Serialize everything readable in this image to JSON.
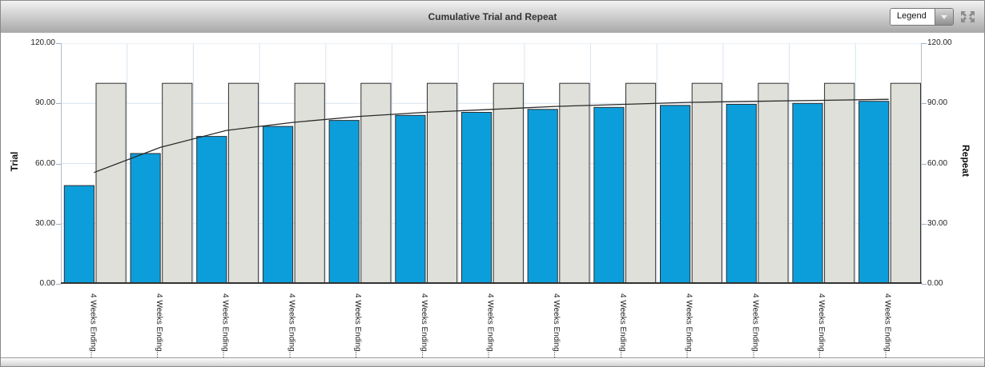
{
  "toolbar": {
    "legend_selector": {
      "value": "Legend"
    }
  },
  "colors": {
    "accent_blue": "#0c9edb",
    "bar_gray": "#e0e0da",
    "bar_border": "#2f2f2f",
    "grid": "#d9e4f0",
    "axis_line": "#b3bcc8",
    "baseline": "#333333",
    "line": "#2a2a2a",
    "icon_gray": "#8b8b8b"
  },
  "chart_data": {
    "type": "bar",
    "title": "Cumulative Trial and Repeat",
    "categories": [
      "4 Weeks Ending...",
      "4 Weeks Ending...",
      "4 Weeks Ending...",
      "4 Weeks Ending...",
      "4 Weeks Ending...",
      "4 Weeks Ending...",
      "4 Weeks Ending...",
      "4 Weeks Ending...",
      "4 Weeks Ending...",
      "4 Weeks Ending...",
      "4 Weeks Ending...",
      "4 Weeks Ending...",
      "4 Weeks Ending..."
    ],
    "series": [
      {
        "name": "Trial",
        "type": "bar",
        "axis": "left",
        "color": "#0c9edb",
        "values": [
          49,
          65,
          73.5,
          78.5,
          81.5,
          84,
          85.5,
          87,
          88,
          89,
          89.5,
          90,
          91
        ]
      },
      {
        "name": "Repeat",
        "type": "bar",
        "axis": "right",
        "color": "#e0e0da",
        "values": [
          100,
          100,
          100,
          100,
          100,
          100,
          100,
          100,
          100,
          100,
          100,
          100,
          100
        ]
      },
      {
        "name": "Line",
        "type": "line",
        "axis": "right",
        "color": "#2a2a2a",
        "values": [
          55.5,
          68,
          76.5,
          80.5,
          83.5,
          85.5,
          87,
          88.5,
          89.5,
          90.5,
          91,
          91.5,
          92
        ]
      }
    ],
    "left_axis": {
      "label": "Trial",
      "min": 0,
      "max": 120,
      "tick_values": [
        0,
        30,
        60,
        90,
        120
      ],
      "tick_labels": [
        "0.00",
        "30.00",
        "60.00",
        "90.00",
        "120.00"
      ]
    },
    "right_axis": {
      "label": "Repeat",
      "min": 0,
      "max": 120,
      "tick_values": [
        0,
        30,
        60,
        90,
        120
      ],
      "tick_labels": [
        "0.00",
        "30.00",
        "60.00",
        "90.00",
        "120.00"
      ]
    },
    "grid": true,
    "legend_position": "collapsed"
  }
}
